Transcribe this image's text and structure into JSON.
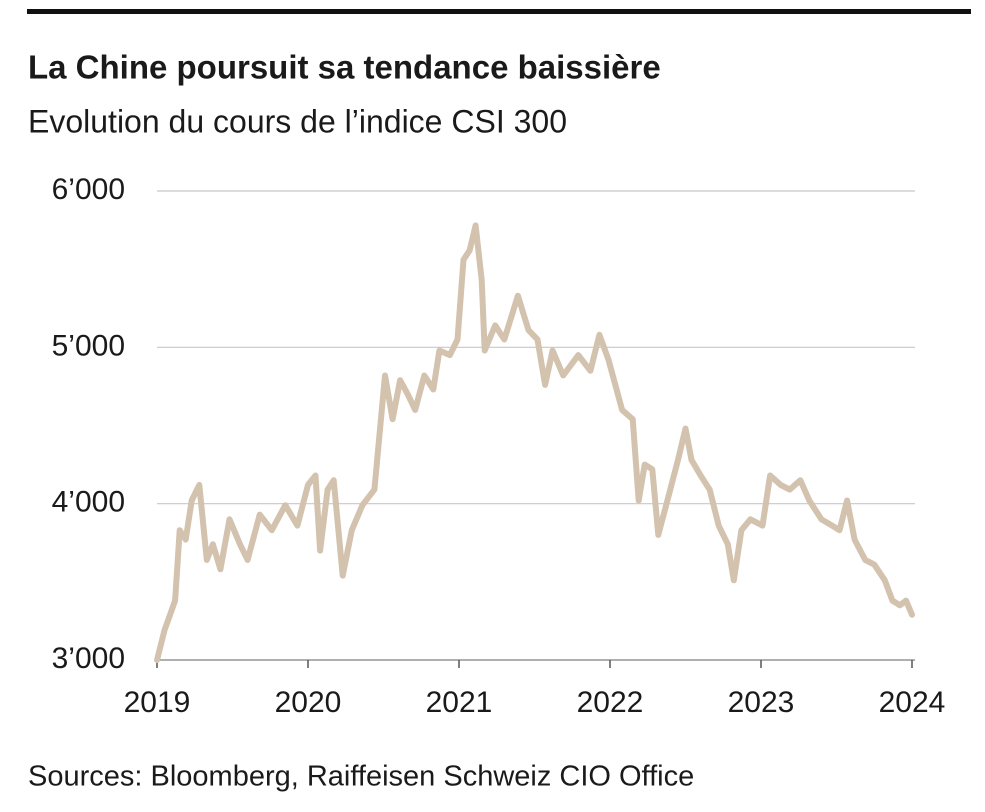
{
  "chart_data": {
    "type": "line",
    "title": "La Chine poursuit sa tendance baissière",
    "subtitle": "Evolution du cours de l’indice CSI 300",
    "source": "Sources: Bloomberg, Raiffeisen Schweiz CIO Office",
    "xlim": [
      2019,
      2024
    ],
    "xticks": [
      2019,
      2020,
      2021,
      2022,
      2023,
      2024
    ],
    "ylim": [
      3000,
      6000
    ],
    "yticks": [
      {
        "value": 3000,
        "label": "3’000"
      },
      {
        "value": 4000,
        "label": "4’000"
      },
      {
        "value": 5000,
        "label": "5’000"
      },
      {
        "value": 6000,
        "label": "6’000"
      }
    ],
    "grid": true,
    "series": [
      {
        "color": "#d3c2ae",
        "x": [
          2019.0,
          2019.05,
          2019.12,
          2019.15,
          2019.19,
          2019.23,
          2019.28,
          2019.33,
          2019.37,
          2019.42,
          2019.48,
          2019.55,
          2019.6,
          2019.68,
          2019.76,
          2019.85,
          2019.93,
          2020.0,
          2020.05,
          2020.08,
          2020.13,
          2020.17,
          2020.23,
          2020.29,
          2020.36,
          2020.44,
          2020.51,
          2020.56,
          2020.61,
          2020.66,
          2020.71,
          2020.77,
          2020.83,
          2020.87,
          2020.94,
          2020.99,
          2021.03,
          2021.07,
          2021.11,
          2021.15,
          2021.17,
          2021.24,
          2021.3,
          2021.39,
          2021.46,
          2021.52,
          2021.57,
          2021.62,
          2021.69,
          2021.79,
          2021.87,
          2021.93,
          2021.99,
          2022.08,
          2022.15,
          2022.19,
          2022.23,
          2022.28,
          2022.32,
          2022.38,
          2022.45,
          2022.5,
          2022.54,
          2022.6,
          2022.66,
          2022.72,
          2022.78,
          2022.82,
          2022.87,
          2022.93,
          2023.01,
          2023.06,
          2023.13,
          2023.19,
          2023.26,
          2023.32,
          2023.4,
          2023.47,
          2023.52,
          2023.57,
          2023.62,
          2023.69,
          2023.75,
          2023.82,
          2023.87,
          2023.92,
          2023.96,
          2024.0
        ],
        "values": [
          3000,
          3190,
          3380,
          3830,
          3770,
          4020,
          4120,
          3640,
          3740,
          3580,
          3900,
          3740,
          3640,
          3930,
          3830,
          3990,
          3860,
          4120,
          4180,
          3700,
          4090,
          4150,
          3540,
          3830,
          3990,
          4090,
          4820,
          4540,
          4790,
          4700,
          4600,
          4820,
          4730,
          4980,
          4950,
          5050,
          5560,
          5620,
          5780,
          5430,
          4980,
          5140,
          5050,
          5330,
          5110,
          5050,
          4760,
          4980,
          4820,
          4950,
          4850,
          5080,
          4920,
          4600,
          4540,
          4020,
          4250,
          4220,
          3800,
          4020,
          4280,
          4480,
          4280,
          4180,
          4090,
          3860,
          3740,
          3510,
          3830,
          3900,
          3860,
          4180,
          4120,
          4090,
          4150,
          4020,
          3900,
          3860,
          3830,
          4020,
          3770,
          3640,
          3610,
          3510,
          3380,
          3350,
          3380,
          3290
        ]
      }
    ]
  }
}
